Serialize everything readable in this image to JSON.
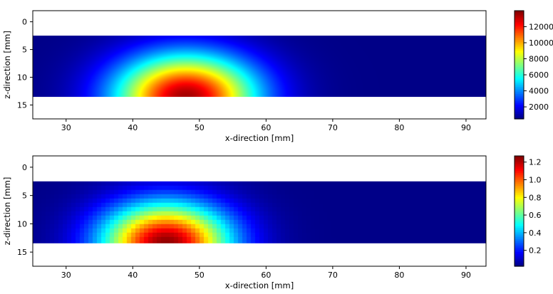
{
  "chart_data": [
    {
      "type": "heatmap",
      "title": "",
      "xlabel": "x-direction [mm]",
      "ylabel": "z-direction [mm]",
      "xlim": [
        25,
        93
      ],
      "ylim": [
        17.5,
        -2
      ],
      "y_inverted": true,
      "xticks": [
        30,
        40,
        50,
        60,
        70,
        80,
        90
      ],
      "yticks": [
        0,
        5,
        10,
        15
      ],
      "data_extent": {
        "x": [
          25,
          93
        ],
        "z": [
          2.5,
          13.5
        ]
      },
      "colormap": "jet",
      "colorbar": {
        "range": [
          500,
          14000
        ],
        "ticks": [
          2000,
          4000,
          6000,
          8000,
          10000,
          12000
        ],
        "tick_labels": [
          "2000",
          "4000",
          "6000",
          "8000",
          "10000",
          "12000"
        ]
      },
      "field": {
        "peak_x": 48,
        "peak_z": 13.5,
        "peak_value": 13500,
        "spread_x": 10.5,
        "spread_z": 7.5,
        "background": 600,
        "shape": "smooth"
      }
    },
    {
      "type": "heatmap",
      "title": "",
      "xlabel": "x-direction [mm]",
      "ylabel": "z-direction [mm]",
      "xlim": [
        25,
        93
      ],
      "ylim": [
        17.5,
        -2
      ],
      "y_inverted": true,
      "xticks": [
        30,
        40,
        50,
        60,
        70,
        80,
        90
      ],
      "yticks": [
        0,
        5,
        10,
        15
      ],
      "data_extent": {
        "x": [
          25,
          93
        ],
        "z": [
          2.5,
          13.5
        ]
      },
      "colormap": "jet",
      "colorbar": {
        "range": [
          0.02,
          1.27
        ],
        "ticks": [
          0.2,
          0.4,
          0.6,
          0.8,
          1.0,
          1.2
        ],
        "tick_labels": [
          "0.2",
          "0.4",
          "0.6",
          "0.8",
          "1.0",
          "1.2"
        ]
      },
      "field": {
        "peak_x": 45,
        "peak_z": 13.5,
        "peak_value": 1.25,
        "spread_x": 9.5,
        "spread_z": 7,
        "background": 0.03,
        "shape": "pixelated"
      }
    }
  ]
}
